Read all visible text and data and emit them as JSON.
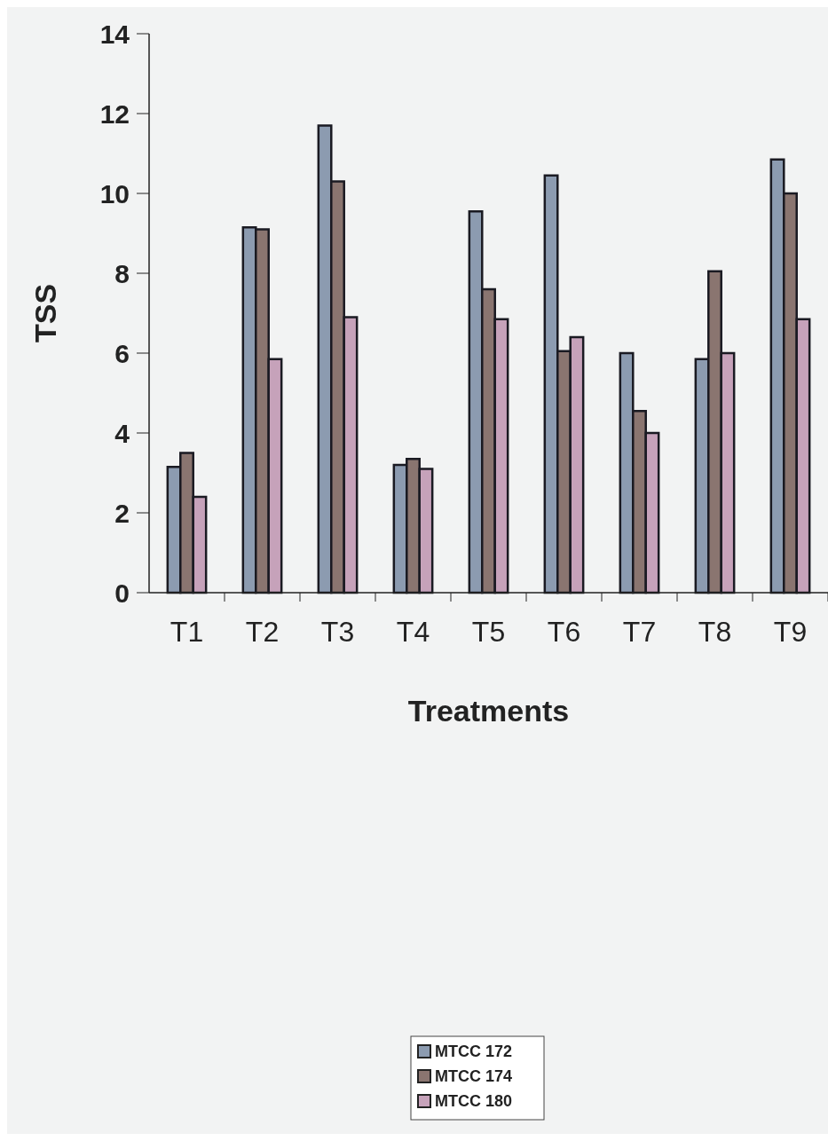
{
  "chart_data": {
    "type": "bar",
    "xlabel": "Treatments",
    "ylabel": "TSS",
    "categories": [
      "T1",
      "T2",
      "T3",
      "T4",
      "T5",
      "T6",
      "T7",
      "T8",
      "T9"
    ],
    "series": [
      {
        "name": "MTCC 172",
        "color": "#8c9bb0",
        "values": [
          3.15,
          9.15,
          11.7,
          3.2,
          9.55,
          10.45,
          6.0,
          5.85,
          10.85
        ]
      },
      {
        "name": "MTCC 174",
        "color": "#8a7570",
        "values": [
          3.5,
          9.1,
          10.3,
          3.35,
          7.6,
          6.05,
          4.55,
          8.05,
          10.0
        ]
      },
      {
        "name": "MTCC 180",
        "color": "#c6a2ba",
        "values": [
          2.4,
          5.85,
          6.9,
          3.1,
          6.85,
          6.4,
          4.0,
          6.0,
          6.85
        ]
      }
    ],
    "ylim": [
      0,
      14
    ],
    "yticks": [
      0,
      2,
      4,
      6,
      8,
      10,
      12,
      14
    ],
    "grid": false,
    "legend": "bottom"
  }
}
